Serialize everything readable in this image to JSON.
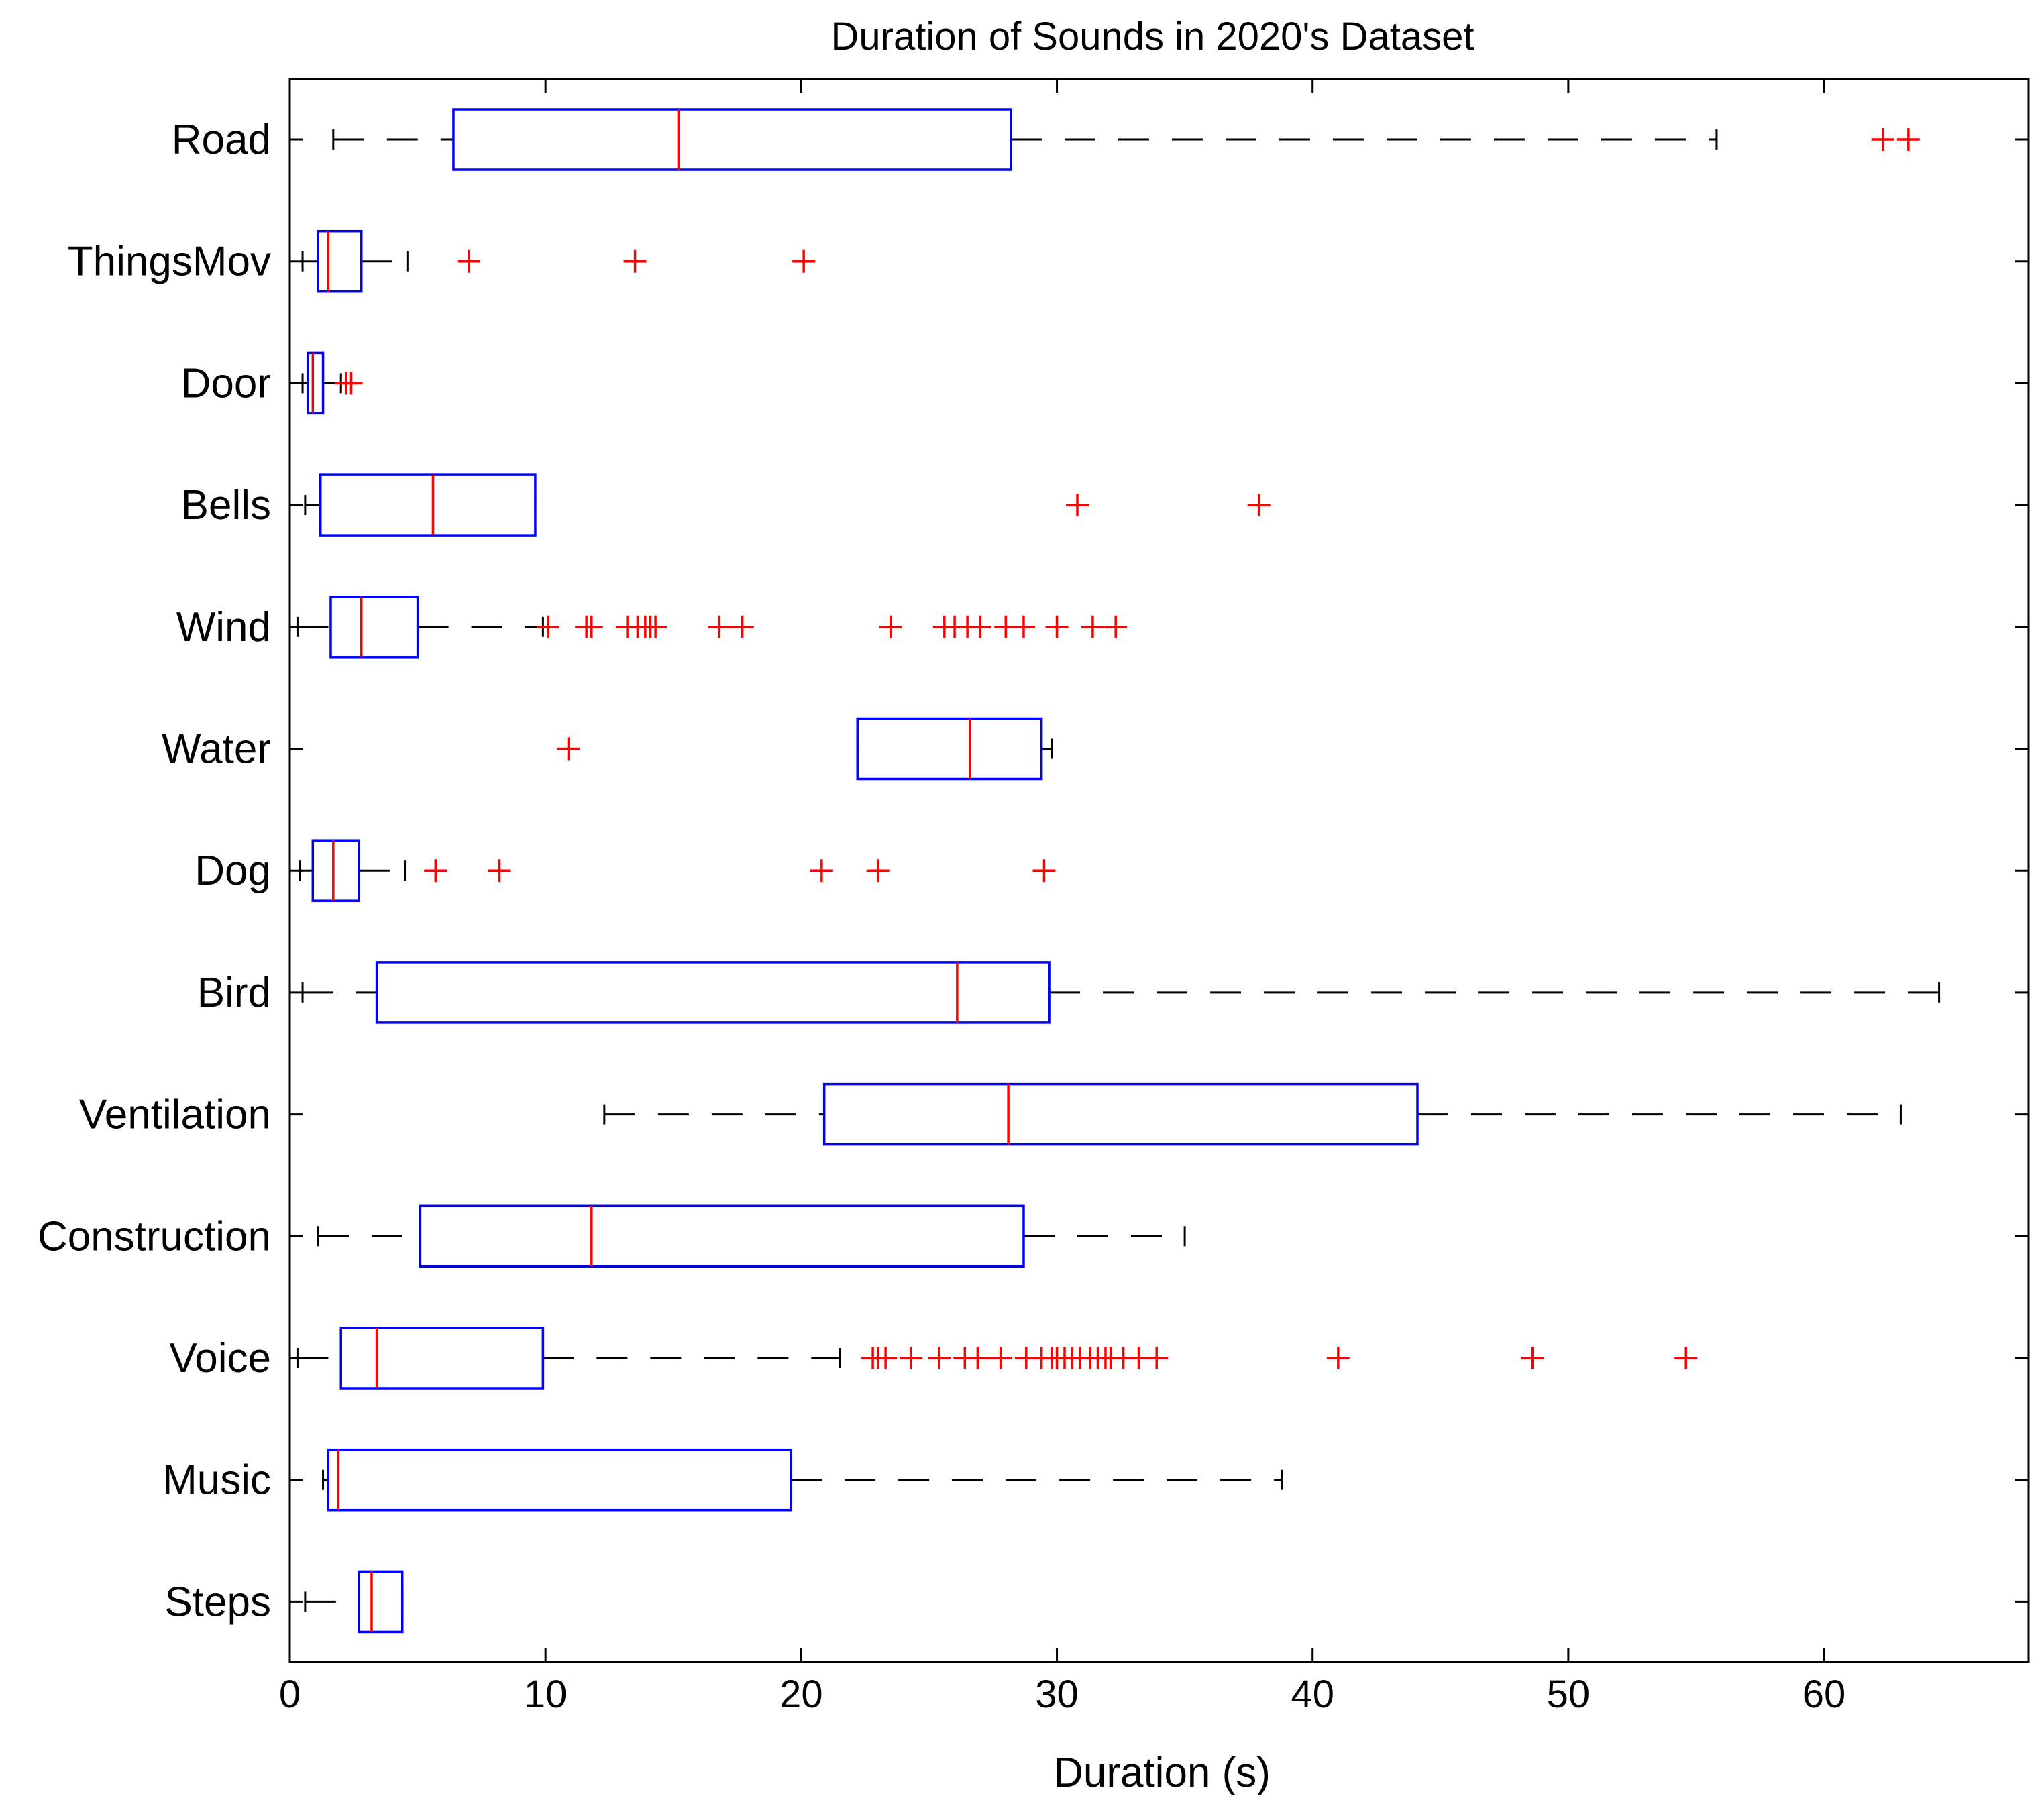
{
  "chart_data": {
    "type": "boxplot",
    "orientation": "horizontal",
    "title": "Duration of Sounds in 2020's Dataset",
    "xlabel": "Duration (s)",
    "ylabel": "",
    "xlim": [
      0,
      68
    ],
    "xticks": [
      0,
      10,
      20,
      30,
      40,
      50,
      60
    ],
    "grid": false,
    "colors": {
      "box": "#0000ff",
      "median": "#ff0000",
      "whisker": "#000000",
      "outlier": "#ff0000"
    },
    "categories": [
      "Road",
      "ThingsMov",
      "Door",
      "Bells",
      "Wind",
      "Water",
      "Dog",
      "Bird",
      "Ventilation",
      "Construction",
      "Voice",
      "Music",
      "Steps"
    ],
    "boxes": [
      {
        "label": "Road",
        "whisker_low": 1.7,
        "q1": 6.4,
        "median": 15.2,
        "q3": 28.2,
        "whisker_high": 55.8,
        "outliers": [
          62.3,
          63.3
        ]
      },
      {
        "label": "ThingsMov",
        "whisker_low": 0.5,
        "q1": 1.1,
        "median": 1.5,
        "q3": 2.8,
        "whisker_high": 4.6,
        "outliers": [
          7.0,
          13.5,
          20.1
        ]
      },
      {
        "label": "Door",
        "whisker_low": 0.5,
        "q1": 0.7,
        "median": 0.9,
        "q3": 1.3,
        "whisker_high": 2.0,
        "outliers": [
          2.2,
          2.4
        ]
      },
      {
        "label": "Bells",
        "whisker_low": 0.6,
        "q1": 1.2,
        "median": 5.6,
        "q3": 9.6,
        "whisker_high": 9.6,
        "outliers": [
          30.8,
          37.9
        ]
      },
      {
        "label": "Wind",
        "whisker_low": 0.3,
        "q1": 1.6,
        "median": 2.8,
        "q3": 5.0,
        "whisker_high": 9.9,
        "outliers": [
          10.1,
          11.6,
          11.8,
          13.2,
          13.6,
          13.9,
          14.1,
          14.3,
          16.8,
          17.7,
          23.5,
          25.6,
          26.0,
          26.5,
          27.0,
          28.0,
          28.7,
          30.0,
          31.4,
          32.3
        ]
      },
      {
        "label": "Water",
        "whisker_low": 22.2,
        "q1": 22.2,
        "median": 26.6,
        "q3": 29.4,
        "whisker_high": 29.8,
        "outliers": [
          10.9
        ]
      },
      {
        "label": "Dog",
        "whisker_low": 0.4,
        "q1": 0.9,
        "median": 1.7,
        "q3": 2.7,
        "whisker_high": 4.5,
        "outliers": [
          5.7,
          8.2,
          20.8,
          23.0,
          29.5
        ]
      },
      {
        "label": "Bird",
        "whisker_low": 0.5,
        "q1": 3.4,
        "median": 26.1,
        "q3": 29.7,
        "whisker_high": 64.5,
        "outliers": []
      },
      {
        "label": "Ventilation",
        "whisker_low": 12.3,
        "q1": 20.9,
        "median": 28.1,
        "q3": 44.1,
        "whisker_high": 63.0,
        "outliers": []
      },
      {
        "label": "Construction",
        "whisker_low": 1.1,
        "q1": 5.1,
        "median": 11.8,
        "q3": 28.7,
        "whisker_high": 35.0,
        "outliers": []
      },
      {
        "label": "Voice",
        "whisker_low": 0.3,
        "q1": 2.0,
        "median": 3.4,
        "q3": 9.9,
        "whisker_high": 21.5,
        "outliers": [
          22.8,
          23.0,
          23.3,
          24.3,
          25.4,
          26.4,
          26.9,
          27.8,
          28.8,
          29.4,
          29.8,
          30.0,
          30.3,
          30.6,
          30.9,
          31.3,
          31.6,
          31.9,
          32.1,
          32.6,
          33.2,
          33.9,
          41.0,
          48.6,
          54.6
        ]
      },
      {
        "label": "Music",
        "whisker_low": 1.3,
        "q1": 1.5,
        "median": 1.9,
        "q3": 19.6,
        "whisker_high": 38.8,
        "outliers": []
      },
      {
        "label": "Steps",
        "whisker_low": 0.6,
        "q1": 2.7,
        "median": 3.2,
        "q3": 4.4,
        "whisker_high": 4.4,
        "outliers": []
      }
    ]
  }
}
